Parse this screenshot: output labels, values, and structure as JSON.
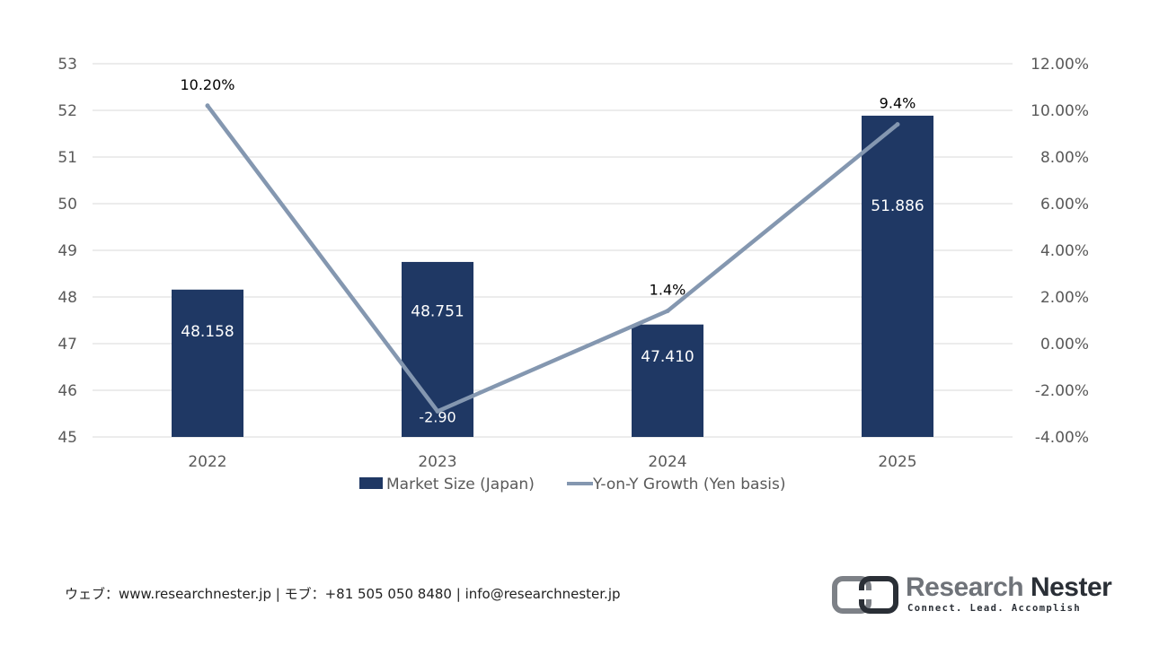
{
  "chart_data": {
    "type": "bar",
    "categories": [
      "2022",
      "2023",
      "2024",
      "2025"
    ],
    "series": [
      {
        "name": "Market Size (Japan)",
        "type": "bar",
        "axis": "left",
        "values": [
          48.158,
          48.751,
          47.41,
          51.886
        ],
        "labels": [
          "48.158",
          "48.751",
          "47.410",
          "51.886"
        ],
        "color": "#1f3864"
      },
      {
        "name": "Y-on-Y Growth (Yen basis)",
        "type": "line",
        "axis": "right",
        "values": [
          10.2,
          -2.9,
          1.4,
          9.4
        ],
        "labels": [
          "10.20%",
          "-2.90",
          "1.4%",
          "9.4%"
        ],
        "color": "#8497b0"
      }
    ],
    "y_left": {
      "min": 45,
      "max": 53,
      "ticks": [
        "45",
        "46",
        "47",
        "48",
        "49",
        "50",
        "51",
        "52",
        "53"
      ]
    },
    "y_right": {
      "min": -4,
      "max": 12,
      "ticks": [
        "-4.00%",
        "-2.00%",
        "0.00%",
        "2.00%",
        "4.00%",
        "6.00%",
        "8.00%",
        "10.00%",
        "12.00%"
      ]
    },
    "grid": true,
    "legend": "bottom"
  },
  "footer": {
    "text": "ウェブ：www.researchnester.jp | モブ：+81 505 050 8480 | info@researchnester.jp"
  },
  "logo": {
    "name_part1": "Research",
    "name_part2": "Nester",
    "tagline": "Connect. Lead. Accomplish"
  }
}
